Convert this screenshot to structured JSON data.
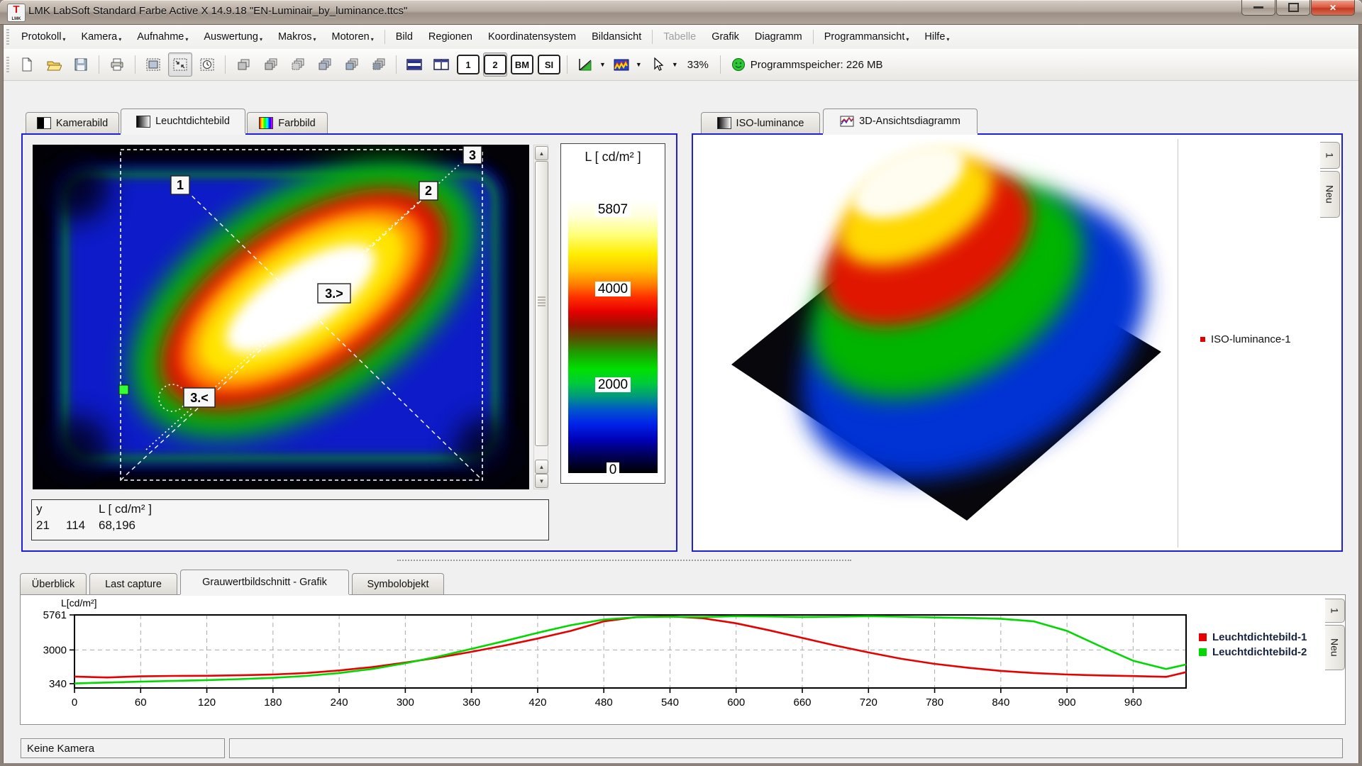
{
  "window": {
    "title": "LMK LabSoft Standard Farbe Active X  14.9.18 \"EN-Luminair_by_luminance.ttcs\"",
    "logo_top": "T",
    "logo_bottom": "LMK"
  },
  "menu": {
    "items": [
      {
        "label": "Protokoll"
      },
      {
        "label": "Kamera"
      },
      {
        "label": "Aufnahme"
      },
      {
        "label": "Auswertung"
      },
      {
        "label": "Makros"
      },
      {
        "label": "Motoren"
      },
      {
        "label": "Bild"
      },
      {
        "label": "Regionen"
      },
      {
        "label": "Koordinatensystem"
      },
      {
        "label": "Bildansicht"
      },
      {
        "label": "Tabelle"
      },
      {
        "label": "Grafik"
      },
      {
        "label": "Diagramm"
      },
      {
        "label": "Programmansicht"
      },
      {
        "label": "Hilfe"
      }
    ]
  },
  "toolbar": {
    "view1": "1",
    "view2": "2",
    "bm": "BM",
    "si": "SI",
    "zoom_level": "33%",
    "memory": "Programmspeicher: 226 MB"
  },
  "left_panel": {
    "tabs": [
      {
        "label": "Kamerabild"
      },
      {
        "label": "Leuchtdichtebild"
      },
      {
        "label": "Farbbild"
      }
    ],
    "active_tab": 1,
    "markers": {
      "m1": "1",
      "m2": "2",
      "m3": "3",
      "m3gt": "3.>",
      "m3lt": "3.<"
    },
    "scale": {
      "title": "L [ cd/m² ]",
      "labels": [
        "5807",
        "4000",
        "2000",
        "0"
      ],
      "label_pos_pct": [
        1,
        30,
        65,
        96
      ]
    },
    "info": {
      "col_y": "y",
      "col_l": "L [ cd/m² ]",
      "row": [
        "21",
        "114",
        "68,196"
      ]
    }
  },
  "right_panel": {
    "tabs": [
      {
        "label": "ISO-luminance"
      },
      {
        "label": "3D-Ansichtsdiagramm"
      }
    ],
    "active_tab": 1,
    "legend_label": "ISO-luminance-1",
    "side_tabs": [
      "1",
      "Neu"
    ]
  },
  "bottom_panel": {
    "tabs": [
      {
        "label": "Überblick"
      },
      {
        "label": "Last capture"
      },
      {
        "label": "Grauwertbildschnitt - Grafik"
      },
      {
        "label": "Symbolobjekt"
      }
    ],
    "active_tab": 2,
    "side_tabs": [
      "1",
      "Neu"
    ]
  },
  "status_bar": {
    "camera": "Keine Kamera"
  },
  "colors": {
    "accent_border": "#2020d8",
    "legend_text": "#16233f",
    "scale_stops": [
      [
        "0%",
        "#ffffff"
      ],
      [
        "6%",
        "#ffffdd"
      ],
      [
        "13%",
        "#ffff7a"
      ],
      [
        "20%",
        "#ffee00"
      ],
      [
        "26%",
        "#ffc000"
      ],
      [
        "31%",
        "#ff7e00"
      ],
      [
        "36%",
        "#ff2e00"
      ],
      [
        "41%",
        "#e60000"
      ],
      [
        "46%",
        "#991300"
      ],
      [
        "51%",
        "#575200"
      ],
      [
        "56%",
        "#1e9c00"
      ],
      [
        "62%",
        "#00e000"
      ],
      [
        "67%",
        "#00cc3a"
      ],
      [
        "72%",
        "#00997d"
      ],
      [
        "77%",
        "#0054cc"
      ],
      [
        "82%",
        "#0023ea"
      ],
      [
        "88%",
        "#0000b4"
      ],
      [
        "94%",
        "#000052"
      ],
      [
        "100%",
        "#000000"
      ]
    ]
  },
  "chart_data": {
    "type": "line",
    "title": "Grauwertbildschnitt - Grafik",
    "ylabel": "L[cd/m²]",
    "yticks": [
      340,
      3000,
      5761
    ],
    "ylim": [
      0,
      5761
    ],
    "xticks": [
      0,
      60,
      120,
      180,
      240,
      300,
      360,
      420,
      480,
      540,
      600,
      660,
      720,
      780,
      840,
      900,
      960
    ],
    "xlim": [
      0,
      1008
    ],
    "grid": true,
    "legend_position": "right",
    "series": [
      {
        "name": "Leuchtdichtebild-1",
        "color": "#e60000",
        "x": [
          0,
          30,
          60,
          90,
          120,
          150,
          180,
          210,
          240,
          270,
          300,
          330,
          360,
          390,
          420,
          450,
          480,
          510,
          540,
          570,
          600,
          630,
          660,
          690,
          720,
          750,
          780,
          810,
          840,
          870,
          900,
          930,
          960,
          990,
          1008
        ],
        "y": [
          900,
          830,
          920,
          950,
          960,
          1000,
          1060,
          1180,
          1380,
          1650,
          2000,
          2400,
          2850,
          3350,
          3900,
          4500,
          5250,
          5600,
          5650,
          5500,
          5100,
          4550,
          3950,
          3350,
          2800,
          2300,
          1900,
          1600,
          1350,
          1180,
          1060,
          990,
          940,
          880,
          1250
        ]
      },
      {
        "name": "Leuchtdichtebild-2",
        "color": "#00d800",
        "x": [
          0,
          30,
          60,
          90,
          120,
          150,
          180,
          210,
          240,
          270,
          300,
          330,
          360,
          390,
          420,
          450,
          480,
          510,
          540,
          570,
          600,
          630,
          660,
          690,
          720,
          750,
          780,
          810,
          840,
          870,
          900,
          930,
          960,
          990,
          1008
        ],
        "y": [
          360,
          430,
          500,
          560,
          620,
          700,
          800,
          950,
          1180,
          1500,
          1950,
          2480,
          3080,
          3700,
          4350,
          4950,
          5400,
          5580,
          5620,
          5600,
          5660,
          5640,
          5600,
          5620,
          5660,
          5620,
          5560,
          5520,
          5460,
          5250,
          4500,
          3300,
          2150,
          1500,
          1850
        ]
      }
    ]
  }
}
